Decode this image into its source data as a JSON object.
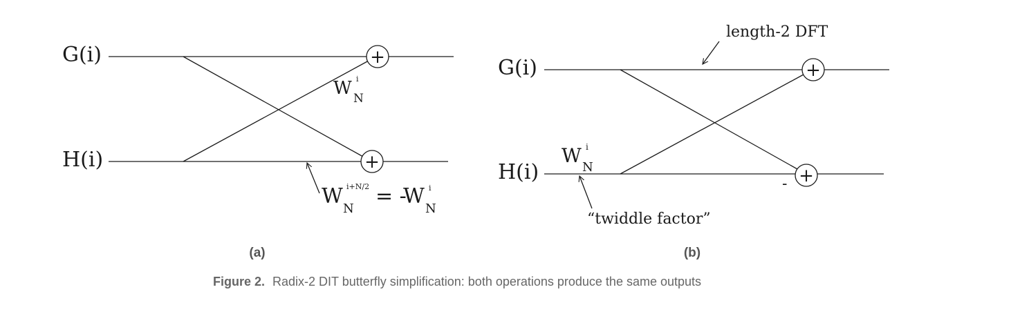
{
  "panel_a": {
    "input_top": "G(i)",
    "input_bottom": "H(i)",
    "twiddle_top": {
      "base": "W",
      "sub": "N",
      "sup": "i"
    },
    "annotation": {
      "lhs": {
        "base": "W",
        "sub": "N",
        "sup": "i+N/2"
      },
      "equals": "= -",
      "rhs": {
        "base": "W",
        "sub": "N",
        "sup": "i"
      }
    },
    "adder_symbol": "+",
    "label": "(a)"
  },
  "panel_b": {
    "input_top": "G(i)",
    "input_bottom": "H(i)",
    "twiddle": {
      "base": "W",
      "sub": "N",
      "sup": "i"
    },
    "dft_label": "length-2 DFT",
    "twiddle_label": "“twiddle factor”",
    "minus_sign": "-",
    "adder_symbol": "+",
    "label": "(b)"
  },
  "caption": {
    "prefix": "Figure 2.",
    "text": "Radix-2 DIT butterfly simplification: both operations produce the same outputs",
    "color": "#666666"
  }
}
